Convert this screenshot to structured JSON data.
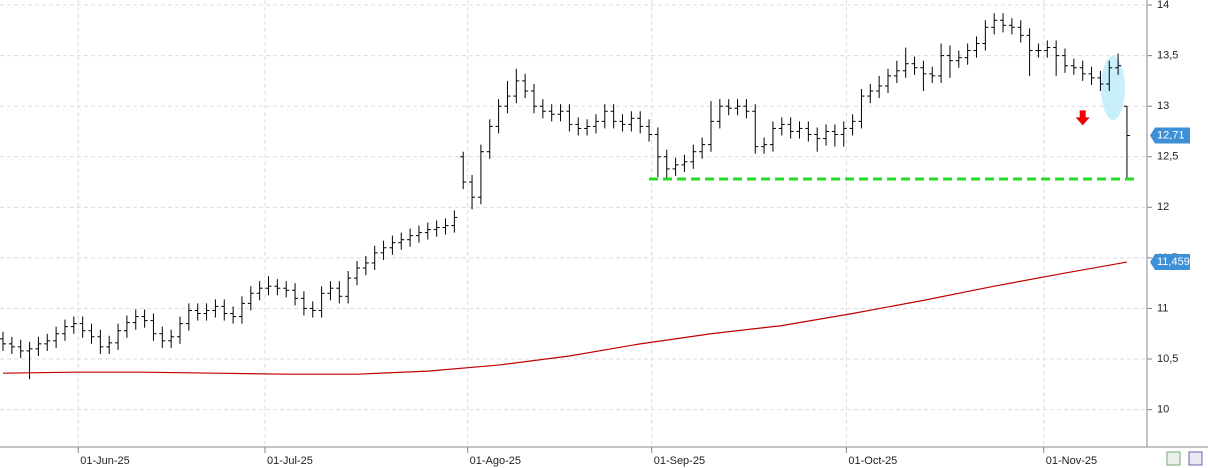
{
  "chart_data": {
    "type": "ohlc",
    "xlim": [
      -0.34,
      129.04
    ],
    "ylim": [
      9.63,
      14.05
    ],
    "xticks": [
      {
        "value": 8.5,
        "label": "01-Jun-25"
      },
      {
        "value": 29.6,
        "label": "01-Jul-25"
      },
      {
        "value": 52.5,
        "label": "01-Ago-25"
      },
      {
        "value": 73.3,
        "label": "01-Sep-25"
      },
      {
        "value": 95.3,
        "label": "01-Oct-25"
      },
      {
        "value": 117.6,
        "label": "01-Nov-25"
      }
    ],
    "yticks": [
      10,
      {
        "value": 10.5,
        "label": "10,5"
      },
      11,
      {
        "value": 11.5,
        "label": "11,5"
      },
      12,
      {
        "value": 12.5,
        "label": "12,5"
      },
      13,
      {
        "value": 13.5,
        "label": "13,5"
      },
      14
    ],
    "grid": true,
    "color": "#000000",
    "open": [
      10.7,
      10.65,
      10.62,
      10.58,
      10.6,
      10.65,
      10.68,
      10.75,
      10.82,
      10.85,
      10.78,
      10.72,
      10.62,
      10.66,
      10.78,
      10.86,
      10.92,
      10.88,
      10.75,
      10.68,
      10.72,
      10.85,
      10.98,
      10.95,
      10.98,
      11.02,
      10.95,
      10.92,
      11.05,
      11.15,
      11.2,
      11.22,
      11.2,
      11.18,
      11.1,
      11.0,
      10.98,
      11.15,
      11.2,
      11.12,
      11.3,
      11.4,
      11.45,
      11.55,
      11.6,
      11.65,
      11.68,
      11.72,
      11.75,
      11.78,
      11.8,
      11.82,
      12.5,
      12.25,
      12.1,
      12.55,
      12.8,
      13.0,
      13.1,
      13.25,
      13.15,
      13.0,
      12.95,
      12.92,
      12.95,
      12.82,
      12.78,
      12.8,
      12.85,
      12.95,
      12.85,
      12.82,
      12.88,
      12.8,
      12.72,
      12.5,
      12.38,
      12.42,
      12.45,
      12.55,
      12.62,
      12.85,
      13.0,
      12.98,
      13.0,
      12.95,
      12.6,
      12.62,
      12.78,
      12.82,
      12.75,
      12.78,
      12.72,
      12.68,
      12.75,
      12.72,
      12.78,
      12.85,
      13.1,
      13.15,
      13.2,
      13.3,
      13.35,
      13.42,
      13.38,
      13.32,
      13.3,
      13.5,
      13.45,
      13.48,
      13.55,
      13.62,
      13.78,
      13.85,
      13.8,
      13.78,
      13.7,
      13.55,
      13.55,
      13.58,
      13.5,
      13.4,
      13.38,
      13.32,
      13.28,
      13.22,
      13.38,
      13.0
    ],
    "high": [
      10.77,
      10.72,
      10.69,
      10.67,
      10.72,
      10.75,
      10.82,
      10.89,
      10.92,
      10.92,
      10.85,
      10.79,
      10.73,
      10.85,
      10.93,
      10.99,
      10.99,
      10.95,
      10.82,
      10.79,
      10.92,
      11.05,
      11.05,
      11.05,
      11.09,
      11.09,
      11.02,
      11.12,
      11.22,
      11.27,
      11.32,
      11.29,
      11.27,
      11.25,
      11.17,
      11.07,
      11.22,
      11.27,
      11.27,
      11.37,
      11.47,
      11.52,
      11.62,
      11.67,
      11.72,
      11.75,
      11.79,
      11.82,
      11.85,
      11.87,
      11.89,
      11.97,
      12.55,
      12.32,
      12.62,
      12.87,
      13.07,
      13.25,
      13.37,
      13.32,
      13.22,
      13.07,
      13.02,
      13.02,
      13.02,
      12.89,
      12.87,
      12.92,
      13.02,
      13.02,
      12.92,
      12.95,
      12.95,
      12.87,
      12.79,
      12.57,
      12.49,
      12.52,
      12.62,
      12.69,
      13.05,
      13.07,
      13.07,
      13.07,
      13.07,
      13.02,
      12.69,
      12.85,
      12.89,
      12.89,
      12.85,
      12.85,
      12.79,
      12.82,
      12.82,
      12.85,
      12.92,
      13.17,
      13.22,
      13.3,
      13.37,
      13.45,
      13.58,
      13.49,
      13.45,
      13.39,
      13.62,
      13.6,
      13.55,
      13.62,
      13.69,
      13.85,
      13.92,
      13.92,
      13.87,
      13.85,
      13.77,
      13.62,
      13.65,
      13.65,
      13.57,
      13.47,
      13.45,
      13.39,
      13.35,
      13.45,
      13.52,
      13.0
    ],
    "low": [
      10.58,
      10.55,
      10.51,
      10.3,
      10.53,
      10.58,
      10.61,
      10.68,
      10.75,
      10.71,
      10.65,
      10.55,
      10.55,
      10.59,
      10.71,
      10.79,
      10.81,
      10.68,
      10.61,
      10.61,
      10.65,
      10.78,
      10.88,
      10.88,
      10.91,
      10.88,
      10.85,
      10.85,
      10.98,
      11.08,
      11.13,
      11.13,
      11.11,
      11.03,
      10.93,
      10.91,
      10.91,
      11.08,
      11.05,
      11.05,
      11.23,
      11.33,
      11.38,
      11.48,
      11.53,
      11.58,
      11.61,
      11.65,
      11.68,
      11.71,
      11.73,
      11.75,
      12.18,
      11.98,
      12.03,
      12.48,
      12.73,
      12.93,
      13.03,
      13.08,
      12.93,
      12.88,
      12.85,
      12.85,
      12.75,
      12.71,
      12.71,
      12.73,
      12.78,
      12.78,
      12.75,
      12.75,
      12.73,
      12.65,
      12.3,
      12.28,
      12.31,
      12.35,
      12.38,
      12.48,
      12.55,
      12.78,
      12.91,
      12.91,
      12.88,
      12.53,
      12.53,
      12.55,
      12.71,
      12.68,
      12.68,
      12.65,
      12.55,
      12.61,
      12.6,
      12.6,
      12.71,
      12.78,
      13.03,
      13.08,
      13.13,
      13.23,
      13.28,
      13.31,
      13.15,
      13.23,
      13.23,
      13.28,
      13.38,
      13.41,
      13.48,
      13.55,
      13.71,
      13.73,
      13.71,
      13.63,
      13.3,
      13.48,
      13.48,
      13.3,
      13.33,
      13.31,
      13.25,
      13.21,
      13.15,
      13.15,
      13.31,
      12.28
    ],
    "close": [
      10.65,
      10.62,
      10.58,
      10.6,
      10.65,
      10.68,
      10.75,
      10.82,
      10.85,
      10.78,
      10.72,
      10.62,
      10.66,
      10.78,
      10.86,
      10.92,
      10.88,
      10.75,
      10.68,
      10.72,
      10.85,
      10.98,
      10.95,
      10.98,
      11.02,
      10.95,
      10.92,
      11.05,
      11.15,
      11.2,
      11.22,
      11.2,
      11.18,
      11.1,
      11.0,
      10.98,
      11.15,
      11.2,
      11.12,
      11.3,
      11.4,
      11.45,
      11.55,
      11.6,
      11.65,
      11.68,
      11.72,
      11.75,
      11.78,
      11.8,
      11.82,
      11.9,
      12.25,
      12.1,
      12.55,
      12.8,
      13.0,
      13.1,
      13.25,
      13.15,
      13.0,
      12.95,
      12.92,
      12.95,
      12.82,
      12.78,
      12.8,
      12.85,
      12.95,
      12.85,
      12.82,
      12.88,
      12.8,
      12.72,
      12.5,
      12.38,
      12.42,
      12.45,
      12.55,
      12.62,
      12.85,
      13.0,
      12.98,
      13.0,
      12.95,
      12.6,
      12.62,
      12.78,
      12.82,
      12.75,
      12.78,
      12.72,
      12.68,
      12.75,
      12.72,
      12.78,
      12.85,
      13.1,
      13.15,
      13.2,
      13.3,
      13.35,
      13.42,
      13.38,
      13.32,
      13.3,
      13.5,
      13.45,
      13.48,
      13.55,
      13.62,
      13.78,
      13.85,
      13.8,
      13.78,
      13.7,
      13.55,
      13.55,
      13.58,
      13.5,
      13.4,
      13.38,
      13.32,
      13.28,
      13.22,
      13.38,
      13.4,
      12.71
    ],
    "moving_average": {
      "color": "#c00000",
      "x": [
        0,
        8,
        16,
        24,
        32,
        40,
        48,
        56,
        64,
        72,
        80,
        88,
        96,
        104,
        112,
        120,
        127
      ],
      "values": [
        10.36,
        10.37,
        10.37,
        10.36,
        10.35,
        10.35,
        10.38,
        10.44,
        10.53,
        10.65,
        10.75,
        10.83,
        10.95,
        11.08,
        11.22,
        11.35,
        11.459
      ]
    },
    "support": {
      "value": 12.28,
      "x": [
        73,
        128
      ],
      "color": "#22dd22"
    },
    "signal": {
      "x": 122,
      "value": 12.88,
      "color": "#ee0000"
    },
    "price_labels": [
      {
        "value": 12.71,
        "label": "12,71",
        "color": "#3d8fd6"
      },
      {
        "value": 11.459,
        "label": "11,459",
        "color": "#3d8fd6"
      }
    ]
  }
}
